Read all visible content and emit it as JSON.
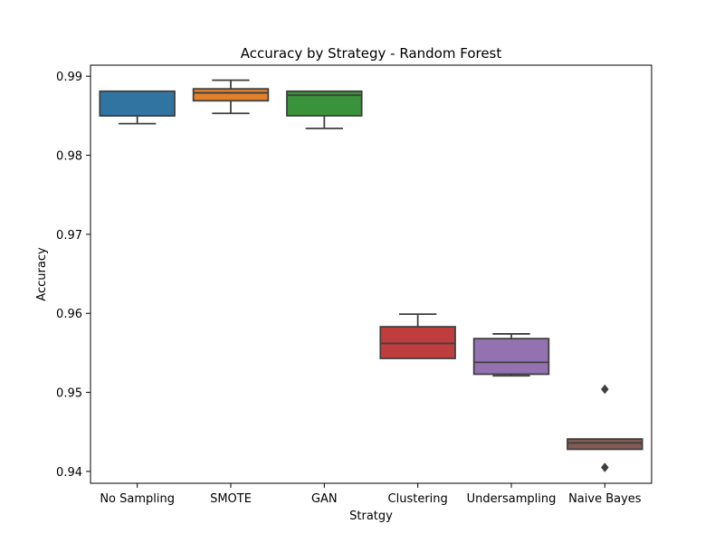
{
  "chart_data": {
    "type": "box",
    "title": "Accuracy by Strategy - Random Forest",
    "xlabel": "Stratgy",
    "ylabel": "Accuracy",
    "ylim": [
      0.9385,
      0.9914
    ],
    "yticks": [
      0.94,
      0.95,
      0.96,
      0.97,
      0.98,
      0.99
    ],
    "ytick_labels": [
      "0.94",
      "0.95",
      "0.96",
      "0.97",
      "0.98",
      "0.99"
    ],
    "grid": false,
    "legend": "none",
    "categories": [
      "No Sampling",
      "SMOTE",
      "GAN",
      "Clustering",
      "Undersampling",
      "Naive Bayes"
    ],
    "boxes": [
      {
        "category": "No Sampling",
        "color": "#3274a1",
        "whislo": 0.984,
        "q1": 0.985,
        "median": 0.985,
        "q3": 0.9881,
        "whishi": 0.9881,
        "fliers": []
      },
      {
        "category": "SMOTE",
        "color": "#e1812c",
        "whislo": 0.9853,
        "q1": 0.9869,
        "median": 0.9879,
        "q3": 0.9884,
        "whishi": 0.9895,
        "fliers": []
      },
      {
        "category": "GAN",
        "color": "#3a923a",
        "whislo": 0.9834,
        "q1": 0.985,
        "median": 0.9876,
        "q3": 0.9881,
        "whishi": 0.9881,
        "fliers": []
      },
      {
        "category": "Clustering",
        "color": "#c03d3e",
        "whislo": 0.9543,
        "q1": 0.9543,
        "median": 0.9562,
        "q3": 0.9583,
        "whishi": 0.9599,
        "fliers": []
      },
      {
        "category": "Undersampling",
        "color": "#9372b2",
        "whislo": 0.9521,
        "q1": 0.9523,
        "median": 0.9538,
        "q3": 0.9568,
        "whishi": 0.9574,
        "fliers": []
      },
      {
        "category": "Naive Bayes",
        "color": "#845b53",
        "whislo": 0.9428,
        "q1": 0.9428,
        "median": 0.9436,
        "q3": 0.9441,
        "whishi": 0.9441,
        "fliers": [
          0.9504,
          0.9405
        ]
      }
    ]
  }
}
